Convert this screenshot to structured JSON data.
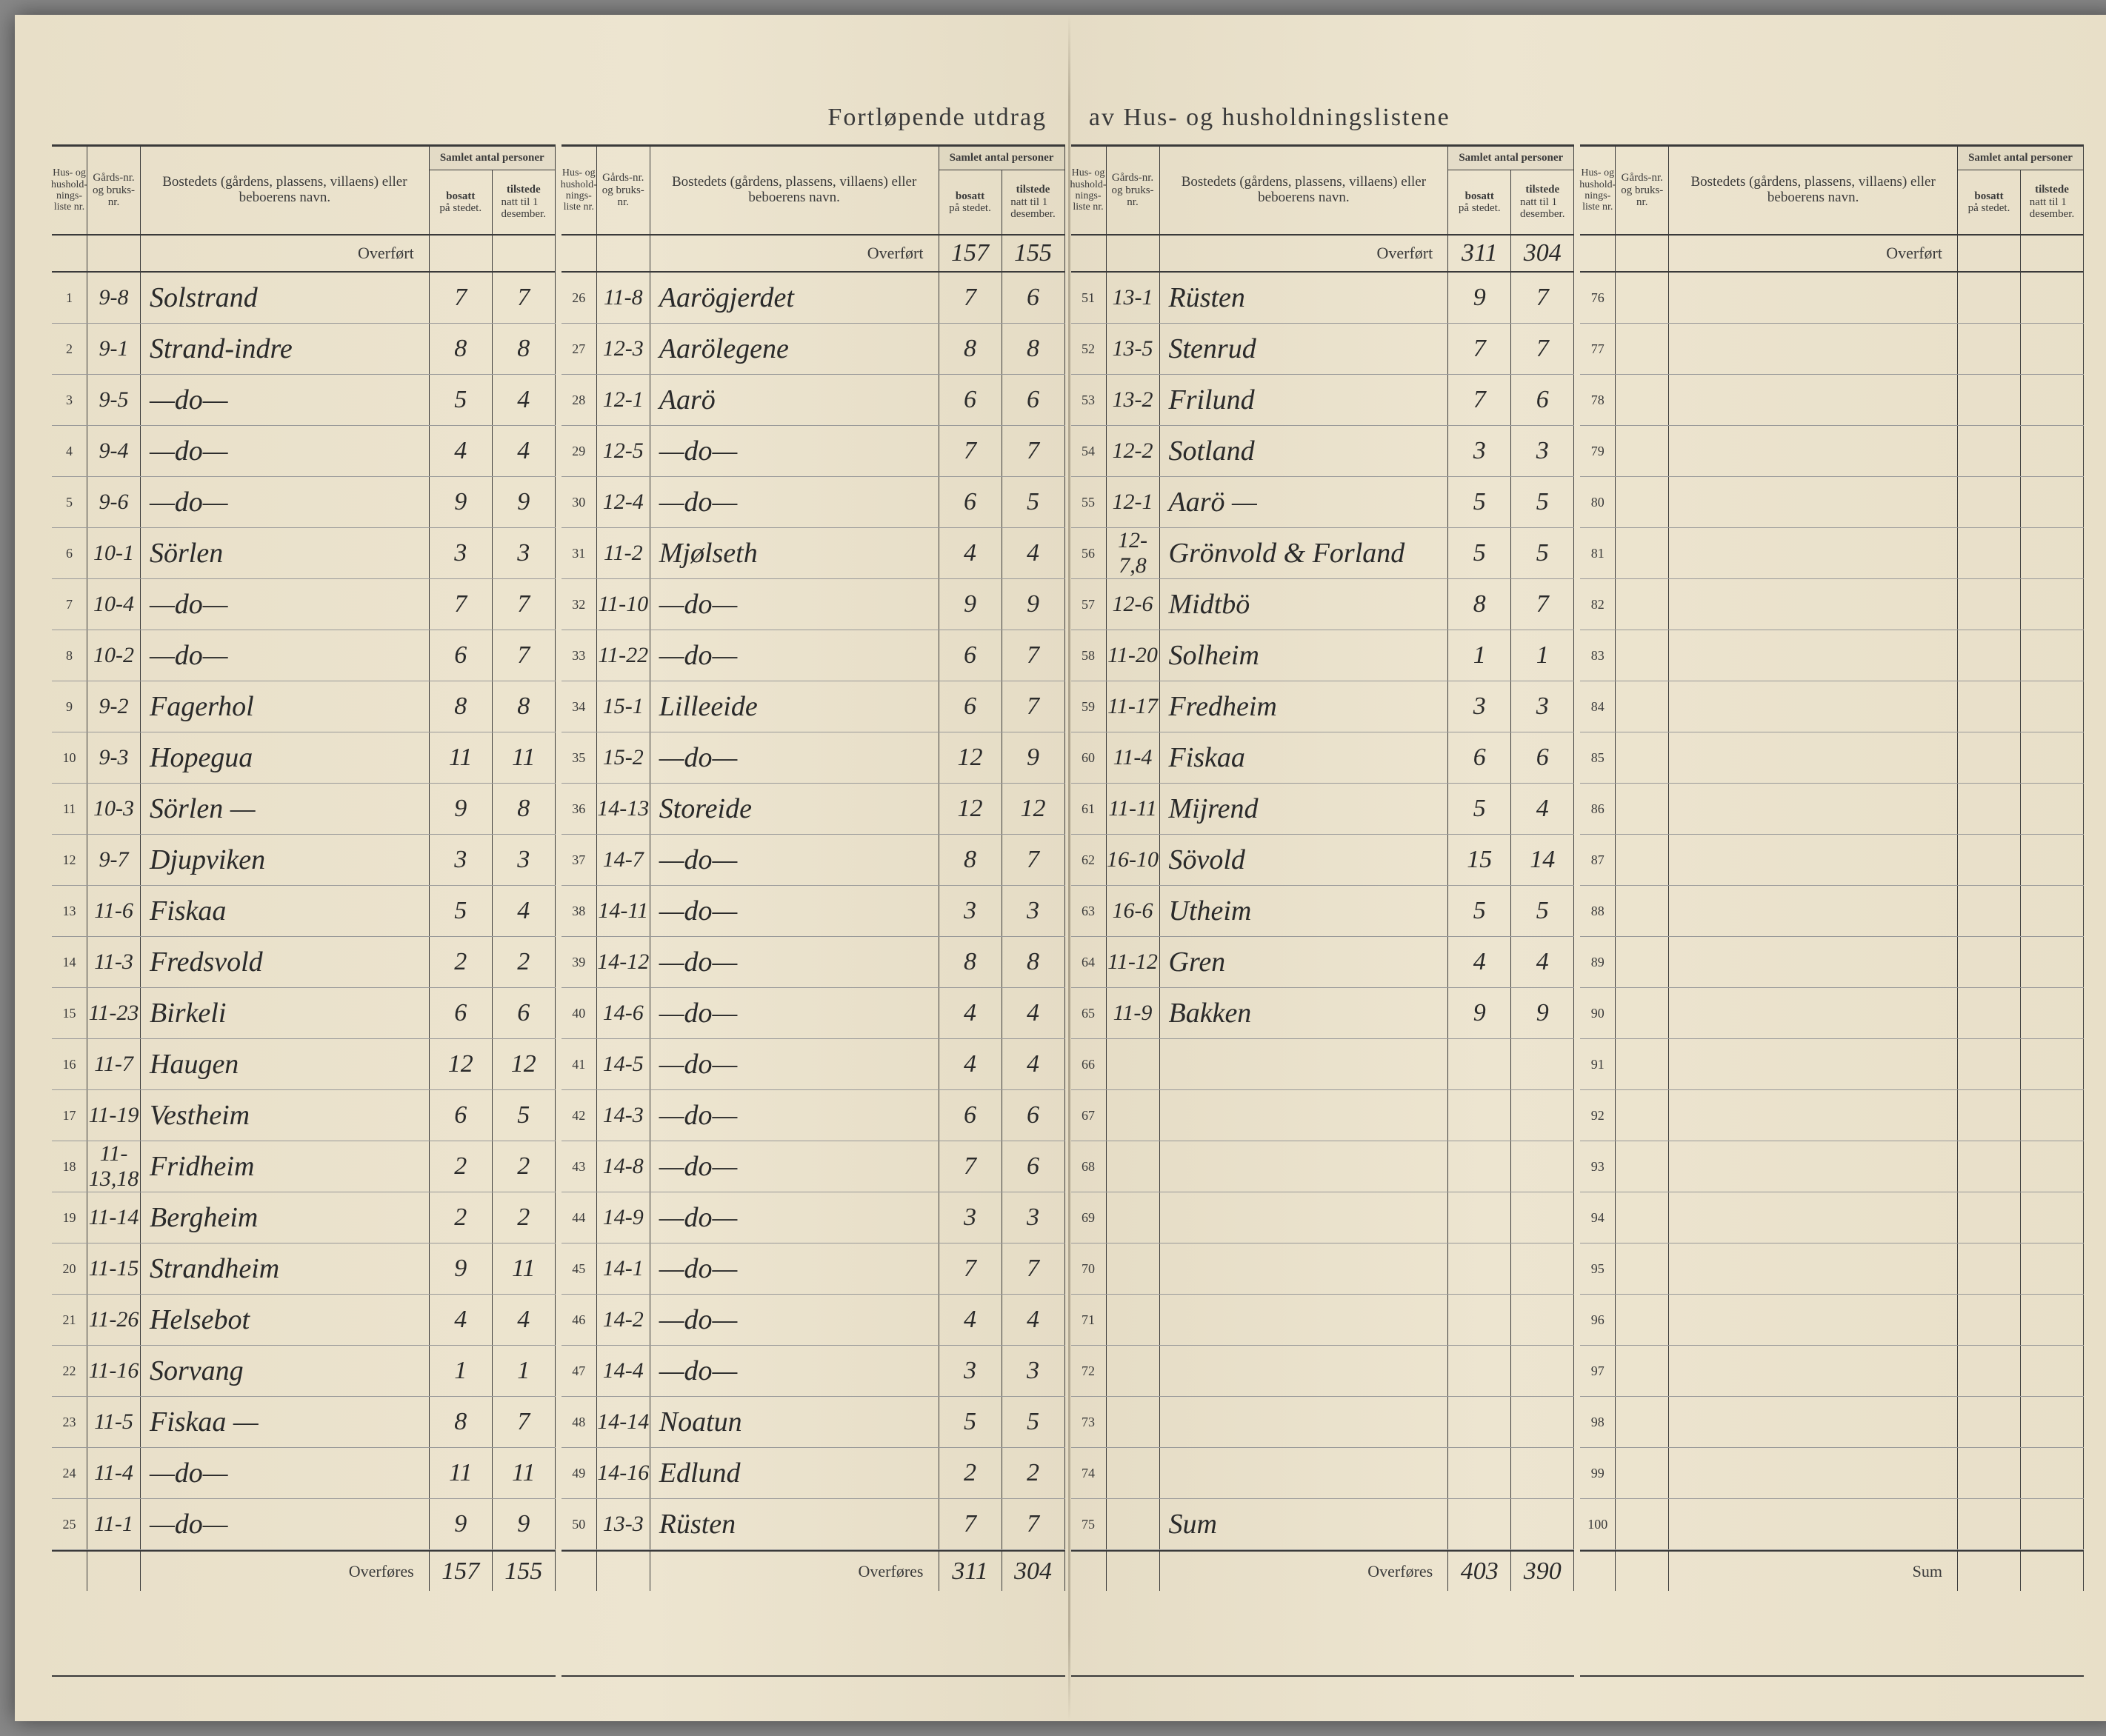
{
  "title_left": "Fortløpende utdrag",
  "title_right": "av Hus- og husholdningslistene",
  "headers": {
    "nr": "Hus- og hushold-nings-liste nr.",
    "gards": "Gårds-nr. og bruks-nr.",
    "bosted": "Bostedets (gårdens, plassens, villaens) eller beboerens navn.",
    "samlet": "Samlet antal personer",
    "bosatt": "bosatt på stedet.",
    "tilstede": "tilstede natt til 1 desember."
  },
  "labels": {
    "overfort": "Overført",
    "overfores": "Overføres",
    "sum": "Sum"
  },
  "columns": [
    {
      "overfort": {
        "bosatt": "",
        "tilstede": ""
      },
      "rows": [
        {
          "nr": "1",
          "gards": "9-8",
          "navn": "Solstrand",
          "bosatt": "7",
          "tilstede": "7"
        },
        {
          "nr": "2",
          "gards": "9-1",
          "navn": "Strand-indre",
          "bosatt": "8",
          "tilstede": "8"
        },
        {
          "nr": "3",
          "gards": "9-5",
          "navn": "—do—",
          "bosatt": "5",
          "tilstede": "4"
        },
        {
          "nr": "4",
          "gards": "9-4",
          "navn": "—do—",
          "bosatt": "4",
          "tilstede": "4"
        },
        {
          "nr": "5",
          "gards": "9-6",
          "navn": "—do—",
          "bosatt": "9",
          "tilstede": "9"
        },
        {
          "nr": "6",
          "gards": "10-1",
          "navn": "Sörlen",
          "bosatt": "3",
          "tilstede": "3"
        },
        {
          "nr": "7",
          "gards": "10-4",
          "navn": "—do—",
          "bosatt": "7",
          "tilstede": "7"
        },
        {
          "nr": "8",
          "gards": "10-2",
          "navn": "—do—",
          "bosatt": "6",
          "tilstede": "7"
        },
        {
          "nr": "9",
          "gards": "9-2",
          "navn": "Fagerhol",
          "bosatt": "8",
          "tilstede": "8"
        },
        {
          "nr": "10",
          "gards": "9-3",
          "navn": "Hopegua",
          "bosatt": "11",
          "tilstede": "11"
        },
        {
          "nr": "11",
          "gards": "10-3",
          "navn": "Sörlen —",
          "bosatt": "9",
          "tilstede": "8"
        },
        {
          "nr": "12",
          "gards": "9-7",
          "navn": "Djupviken",
          "bosatt": "3",
          "tilstede": "3"
        },
        {
          "nr": "13",
          "gards": "11-6",
          "navn": "Fiskaa",
          "bosatt": "5",
          "tilstede": "4"
        },
        {
          "nr": "14",
          "gards": "11-3",
          "navn": "Fredsvold",
          "bosatt": "2",
          "tilstede": "2"
        },
        {
          "nr": "15",
          "gards": "11-23",
          "navn": "Birkeli",
          "bosatt": "6",
          "tilstede": "6"
        },
        {
          "nr": "16",
          "gards": "11-7",
          "navn": "Haugen",
          "bosatt": "12",
          "tilstede": "12"
        },
        {
          "nr": "17",
          "gards": "11-19",
          "navn": "Vestheim",
          "bosatt": "6",
          "tilstede": "5"
        },
        {
          "nr": "18",
          "gards": "11-13,18",
          "navn": "Fridheim",
          "bosatt": "2",
          "tilstede": "2"
        },
        {
          "nr": "19",
          "gards": "11-14",
          "navn": "Bergheim",
          "bosatt": "2",
          "tilstede": "2"
        },
        {
          "nr": "20",
          "gards": "11-15",
          "navn": "Strandheim",
          "bosatt": "9",
          "tilstede": "11"
        },
        {
          "nr": "21",
          "gards": "11-26",
          "navn": "Helsebot",
          "bosatt": "4",
          "tilstede": "4"
        },
        {
          "nr": "22",
          "gards": "11-16",
          "navn": "Sorvang",
          "bosatt": "1",
          "tilstede": "1"
        },
        {
          "nr": "23",
          "gards": "11-5",
          "navn": "Fiskaa —",
          "bosatt": "8",
          "tilstede": "7"
        },
        {
          "nr": "24",
          "gards": "11-4",
          "navn": "—do—",
          "bosatt": "11",
          "tilstede": "11"
        },
        {
          "nr": "25",
          "gards": "11-1",
          "navn": "—do—",
          "bosatt": "9",
          "tilstede": "9"
        }
      ],
      "sum": {
        "label": "Overføres",
        "bosatt": "157",
        "tilstede": "155"
      }
    },
    {
      "overfort": {
        "bosatt": "157",
        "tilstede": "155"
      },
      "rows": [
        {
          "nr": "26",
          "gards": "11-8",
          "navn": "Aarögjerdet",
          "bosatt": "7",
          "tilstede": "6"
        },
        {
          "nr": "27",
          "gards": "12-3",
          "navn": "Aarölegene",
          "bosatt": "8",
          "tilstede": "8"
        },
        {
          "nr": "28",
          "gards": "12-1",
          "navn": "Aarö",
          "bosatt": "6",
          "tilstede": "6"
        },
        {
          "nr": "29",
          "gards": "12-5",
          "navn": "—do—",
          "bosatt": "7",
          "tilstede": "7"
        },
        {
          "nr": "30",
          "gards": "12-4",
          "navn": "—do—",
          "bosatt": "6",
          "tilstede": "5"
        },
        {
          "nr": "31",
          "gards": "11-2",
          "navn": "Mjølseth",
          "bosatt": "4",
          "tilstede": "4"
        },
        {
          "nr": "32",
          "gards": "11-10",
          "navn": "—do—",
          "bosatt": "9",
          "tilstede": "9"
        },
        {
          "nr": "33",
          "gards": "11-22",
          "navn": "—do—",
          "bosatt": "6",
          "tilstede": "7"
        },
        {
          "nr": "34",
          "gards": "15-1",
          "navn": "Lilleeide",
          "bosatt": "6",
          "tilstede": "7"
        },
        {
          "nr": "35",
          "gards": "15-2",
          "navn": "—do—",
          "bosatt": "12",
          "tilstede": "9"
        },
        {
          "nr": "36",
          "gards": "14-13",
          "navn": "Storeide",
          "bosatt": "12",
          "tilstede": "12"
        },
        {
          "nr": "37",
          "gards": "14-7",
          "navn": "—do—",
          "bosatt": "8",
          "tilstede": "7"
        },
        {
          "nr": "38",
          "gards": "14-11",
          "navn": "—do—",
          "bosatt": "3",
          "tilstede": "3"
        },
        {
          "nr": "39",
          "gards": "14-12",
          "navn": "—do—",
          "bosatt": "8",
          "tilstede": "8"
        },
        {
          "nr": "40",
          "gards": "14-6",
          "navn": "—do—",
          "bosatt": "4",
          "tilstede": "4"
        },
        {
          "nr": "41",
          "gards": "14-5",
          "navn": "—do—",
          "bosatt": "4",
          "tilstede": "4"
        },
        {
          "nr": "42",
          "gards": "14-3",
          "navn": "—do—",
          "bosatt": "6",
          "tilstede": "6"
        },
        {
          "nr": "43",
          "gards": "14-8",
          "navn": "—do—",
          "bosatt": "7",
          "tilstede": "6"
        },
        {
          "nr": "44",
          "gards": "14-9",
          "navn": "—do—",
          "bosatt": "3",
          "tilstede": "3"
        },
        {
          "nr": "45",
          "gards": "14-1",
          "navn": "—do—",
          "bosatt": "7",
          "tilstede": "7"
        },
        {
          "nr": "46",
          "gards": "14-2",
          "navn": "—do—",
          "bosatt": "4",
          "tilstede": "4"
        },
        {
          "nr": "47",
          "gards": "14-4",
          "navn": "—do—",
          "bosatt": "3",
          "tilstede": "3"
        },
        {
          "nr": "48",
          "gards": "14-14",
          "navn": "Noatun",
          "bosatt": "5",
          "tilstede": "5"
        },
        {
          "nr": "49",
          "gards": "14-16",
          "navn": "Edlund",
          "bosatt": "2",
          "tilstede": "2"
        },
        {
          "nr": "50",
          "gards": "13-3",
          "navn": "Rüsten",
          "bosatt": "7",
          "tilstede": "7"
        }
      ],
      "sum": {
        "label": "Overføres",
        "bosatt": "311",
        "tilstede": "304"
      }
    },
    {
      "overfort": {
        "bosatt": "311",
        "tilstede": "304"
      },
      "rows": [
        {
          "nr": "51",
          "gards": "13-1",
          "navn": "Rüsten",
          "bosatt": "9",
          "tilstede": "7"
        },
        {
          "nr": "52",
          "gards": "13-5",
          "navn": "Stenrud",
          "bosatt": "7",
          "tilstede": "7"
        },
        {
          "nr": "53",
          "gards": "13-2",
          "navn": "Frilund",
          "bosatt": "7",
          "tilstede": "6"
        },
        {
          "nr": "54",
          "gards": "12-2",
          "navn": "Sotland",
          "bosatt": "3",
          "tilstede": "3"
        },
        {
          "nr": "55",
          "gards": "12-1",
          "navn": "Aarö —",
          "bosatt": "5",
          "tilstede": "5"
        },
        {
          "nr": "56",
          "gards": "12-7,8",
          "navn": "Grönvold & Forland",
          "bosatt": "5",
          "tilstede": "5"
        },
        {
          "nr": "57",
          "gards": "12-6",
          "navn": "Midtbö",
          "bosatt": "8",
          "tilstede": "7"
        },
        {
          "nr": "58",
          "gards": "11-20",
          "navn": "Solheim",
          "bosatt": "1",
          "tilstede": "1"
        },
        {
          "nr": "59",
          "gards": "11-17",
          "navn": "Fredheim",
          "bosatt": "3",
          "tilstede": "3"
        },
        {
          "nr": "60",
          "gards": "11-4",
          "navn": "Fiskaa",
          "bosatt": "6",
          "tilstede": "6"
        },
        {
          "nr": "61",
          "gards": "11-11",
          "navn": "Mijrend",
          "bosatt": "5",
          "tilstede": "4"
        },
        {
          "nr": "62",
          "gards": "16-10",
          "navn": "Sövold",
          "bosatt": "15",
          "tilstede": "14"
        },
        {
          "nr": "63",
          "gards": "16-6",
          "navn": "Utheim",
          "bosatt": "5",
          "tilstede": "5"
        },
        {
          "nr": "64",
          "gards": "11-12",
          "navn": "Gren",
          "bosatt": "4",
          "tilstede": "4"
        },
        {
          "nr": "65",
          "gards": "11-9",
          "navn": "Bakken",
          "bosatt": "9",
          "tilstede": "9"
        },
        {
          "nr": "66",
          "gards": "",
          "navn": "",
          "bosatt": "",
          "tilstede": ""
        },
        {
          "nr": "67",
          "gards": "",
          "navn": "",
          "bosatt": "",
          "tilstede": ""
        },
        {
          "nr": "68",
          "gards": "",
          "navn": "",
          "bosatt": "",
          "tilstede": ""
        },
        {
          "nr": "69",
          "gards": "",
          "navn": "",
          "bosatt": "",
          "tilstede": ""
        },
        {
          "nr": "70",
          "gards": "",
          "navn": "",
          "bosatt": "",
          "tilstede": ""
        },
        {
          "nr": "71",
          "gards": "",
          "navn": "",
          "bosatt": "",
          "tilstede": ""
        },
        {
          "nr": "72",
          "gards": "",
          "navn": "",
          "bosatt": "",
          "tilstede": ""
        },
        {
          "nr": "73",
          "gards": "",
          "navn": "",
          "bosatt": "",
          "tilstede": ""
        },
        {
          "nr": "74",
          "gards": "",
          "navn": "",
          "bosatt": "",
          "tilstede": ""
        },
        {
          "nr": "75",
          "gards": "",
          "navn": "Sum",
          "bosatt": "",
          "tilstede": ""
        }
      ],
      "sum": {
        "label": "Overføres",
        "bosatt": "403",
        "tilstede": "390"
      }
    },
    {
      "overfort": {
        "bosatt": "",
        "tilstede": ""
      },
      "rows": [
        {
          "nr": "76",
          "gards": "",
          "navn": "",
          "bosatt": "",
          "tilstede": ""
        },
        {
          "nr": "77",
          "gards": "",
          "navn": "",
          "bosatt": "",
          "tilstede": ""
        },
        {
          "nr": "78",
          "gards": "",
          "navn": "",
          "bosatt": "",
          "tilstede": ""
        },
        {
          "nr": "79",
          "gards": "",
          "navn": "",
          "bosatt": "",
          "tilstede": ""
        },
        {
          "nr": "80",
          "gards": "",
          "navn": "",
          "bosatt": "",
          "tilstede": ""
        },
        {
          "nr": "81",
          "gards": "",
          "navn": "",
          "bosatt": "",
          "tilstede": ""
        },
        {
          "nr": "82",
          "gards": "",
          "navn": "",
          "bosatt": "",
          "tilstede": ""
        },
        {
          "nr": "83",
          "gards": "",
          "navn": "",
          "bosatt": "",
          "tilstede": ""
        },
        {
          "nr": "84",
          "gards": "",
          "navn": "",
          "bosatt": "",
          "tilstede": ""
        },
        {
          "nr": "85",
          "gards": "",
          "navn": "",
          "bosatt": "",
          "tilstede": ""
        },
        {
          "nr": "86",
          "gards": "",
          "navn": "",
          "bosatt": "",
          "tilstede": ""
        },
        {
          "nr": "87",
          "gards": "",
          "navn": "",
          "bosatt": "",
          "tilstede": ""
        },
        {
          "nr": "88",
          "gards": "",
          "navn": "",
          "bosatt": "",
          "tilstede": ""
        },
        {
          "nr": "89",
          "gards": "",
          "navn": "",
          "bosatt": "",
          "tilstede": ""
        },
        {
          "nr": "90",
          "gards": "",
          "navn": "",
          "bosatt": "",
          "tilstede": ""
        },
        {
          "nr": "91",
          "gards": "",
          "navn": "",
          "bosatt": "",
          "tilstede": ""
        },
        {
          "nr": "92",
          "gards": "",
          "navn": "",
          "bosatt": "",
          "tilstede": ""
        },
        {
          "nr": "93",
          "gards": "",
          "navn": "",
          "bosatt": "",
          "tilstede": ""
        },
        {
          "nr": "94",
          "gards": "",
          "navn": "",
          "bosatt": "",
          "tilstede": ""
        },
        {
          "nr": "95",
          "gards": "",
          "navn": "",
          "bosatt": "",
          "tilstede": ""
        },
        {
          "nr": "96",
          "gards": "",
          "navn": "",
          "bosatt": "",
          "tilstede": ""
        },
        {
          "nr": "97",
          "gards": "",
          "navn": "",
          "bosatt": "",
          "tilstede": ""
        },
        {
          "nr": "98",
          "gards": "",
          "navn": "",
          "bosatt": "",
          "tilstede": ""
        },
        {
          "nr": "99",
          "gards": "",
          "navn": "",
          "bosatt": "",
          "tilstede": ""
        },
        {
          "nr": "100",
          "gards": "",
          "navn": "",
          "bosatt": "",
          "tilstede": ""
        }
      ],
      "sum": {
        "label": "Sum",
        "bosatt": "",
        "tilstede": ""
      }
    }
  ],
  "colors": {
    "paper": "#e8dfc8",
    "ink": "#2a2a2a",
    "rule": "#3a3a3a",
    "light_rule": "#999"
  }
}
